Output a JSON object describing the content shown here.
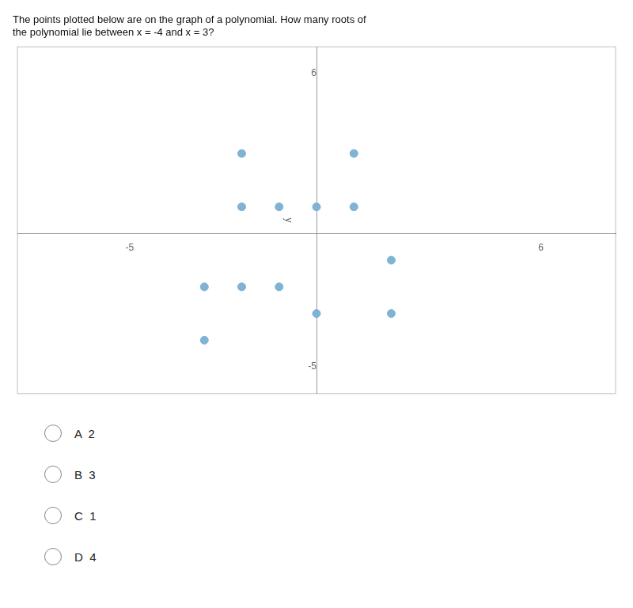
{
  "chart_data": {
    "type": "scatter",
    "title": [
      "The points plotted below are on the graph of a polynomial. How many roots of",
      "the polynomial lie between x = -4 and x = 3?"
    ],
    "ylabel": "y",
    "x": [
      -2,
      1,
      -2,
      -1,
      0,
      1,
      2,
      -3,
      -2,
      -1,
      -3,
      0,
      2
    ],
    "values": [
      3,
      3,
      1,
      1,
      1,
      1,
      -1,
      -2,
      -2,
      -2,
      -4,
      -3,
      -3
    ],
    "color": "#7fb3d3",
    "xlim": [
      -8,
      8
    ],
    "ylim": [
      -6,
      7
    ],
    "xticks": [
      -5,
      6
    ],
    "yticks": [
      -5,
      6
    ],
    "grid": false,
    "legend": null,
    "annotations": [
      "A  2",
      "B  3",
      "C  1",
      "D  4"
    ]
  }
}
